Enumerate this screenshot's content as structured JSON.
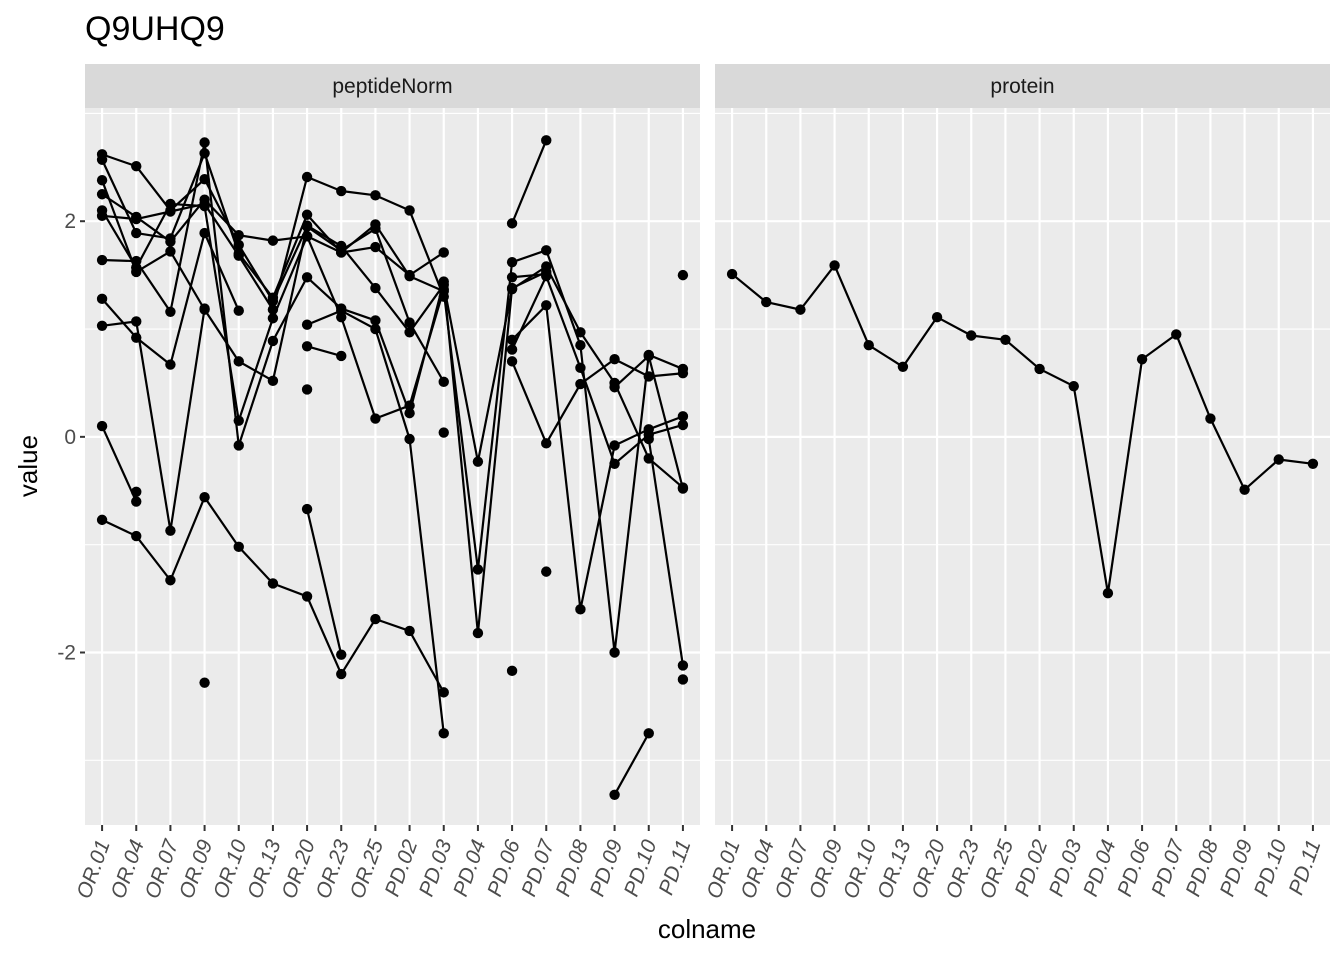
{
  "chart_data": {
    "type": "line",
    "title": "Q9UHQ9",
    "xlabel": "colname",
    "ylabel": "value",
    "ylim": [
      -3.6,
      3.05
    ],
    "y_ticks": [
      -2,
      0,
      2
    ],
    "grid": true,
    "categories": [
      "OR.01",
      "OR.04",
      "OR.07",
      "OR.09",
      "OR.10",
      "OR.13",
      "OR.20",
      "OR.23",
      "OR.25",
      "PD.02",
      "PD.03",
      "PD.04",
      "PD.06",
      "PD.07",
      "PD.08",
      "PD.09",
      "PD.10",
      "PD.11"
    ],
    "panels": [
      {
        "name": "peptideNorm",
        "series": [
          {
            "values": [
              2.62,
              2.51,
              2.1,
              2.39,
              1.78,
              1.26,
              1.95,
              1.73,
              1.93,
              1.06,
              0.51,
              null,
              0.7,
              -0.06,
              0.49,
              0.72,
              0.56,
              0.59
            ]
          },
          {
            "values": [
              2.57,
              1.89,
              1.84,
              2.63,
              1.7,
              1.29,
              2.06,
              1.71,
              1.97,
              1.49,
              1.35,
              -1.23,
              1.62,
              1.73,
              0.85,
              -2.0,
              0.76,
              0.63
            ]
          },
          {
            "values": [
              2.38,
              1.53,
              1.72,
              1.18,
              0.7,
              0.52,
              1.96,
              1.77,
              1.38,
              0.97,
              1.41,
              -0.23,
              1.37,
              1.58,
              0.97,
              0.5,
              -0.2,
              -0.47
            ]
          },
          {
            "values": [
              2.25,
              2.04,
              1.81,
              2.2,
              1.87,
              1.82,
              1.86,
              1.11,
              0.17,
              0.29,
              1.37,
              null,
              0.9,
              1.22,
              -1.6,
              -0.08,
              0.07,
              0.19
            ]
          },
          {
            "values": [
              2.1,
              1.57,
              2.16,
              2.14,
              0.15,
              1.1,
              1.86,
              1.71,
              1.76,
              1.5,
              1.71,
              null,
              0.81,
              1.49,
              0.64,
              -0.25,
              0.02,
              0.11
            ]
          },
          {
            "values": [
              2.05,
              2.02,
              2.09,
              2.16,
              1.68,
              1.18,
              2.41,
              2.28,
              2.24,
              2.1,
              1.3,
              null,
              1.48,
              1.51,
              null,
              0.46,
              0.75,
              -0.48
            ]
          },
          {
            "values": [
              1.64,
              1.63,
              1.16,
              2.73,
              -0.08,
              0.89,
              1.48,
              1.19,
              1.08,
              0.22,
              1.44,
              -1.82,
              1.38,
              1.53,
              null,
              null,
              -0.02,
              -2.12
            ]
          },
          {
            "values": [
              1.28,
              0.92,
              0.67,
              1.89,
              1.17,
              null,
              null,
              null,
              null,
              null,
              null,
              null,
              null,
              null,
              null,
              null,
              null,
              null
            ]
          },
          {
            "values": [
              1.03,
              1.07,
              -0.87,
              1.19,
              null,
              null,
              1.04,
              1.17,
              1.0,
              -0.02,
              -2.75,
              null,
              null,
              null,
              null,
              null,
              null,
              1.5
            ]
          },
          {
            "values": [
              0.1,
              -0.6,
              null,
              null,
              null,
              null,
              0.84,
              0.75,
              null,
              null,
              null,
              null,
              null,
              null,
              null,
              null,
              null,
              null
            ]
          },
          {
            "values": [
              -0.77,
              -0.92,
              -1.33,
              -0.56,
              -1.02,
              -1.36,
              -1.48,
              -2.2,
              -1.69,
              -1.8,
              -2.37,
              null,
              null,
              null,
              null,
              null,
              null,
              null
            ]
          },
          {
            "values": [
              null,
              -0.51,
              null,
              null,
              null,
              null,
              0.44,
              null,
              null,
              null,
              null,
              null,
              null,
              null,
              null,
              null,
              null,
              null
            ]
          },
          {
            "values": [
              null,
              null,
              null,
              null,
              null,
              null,
              -0.67,
              -2.02,
              null,
              null,
              null,
              null,
              null,
              null,
              null,
              null,
              null,
              null
            ]
          },
          {
            "values": [
              null,
              null,
              null,
              -2.28,
              null,
              null,
              null,
              null,
              null,
              null,
              null,
              null,
              null,
              null,
              null,
              null,
              null,
              null
            ]
          },
          {
            "values": [
              null,
              null,
              null,
              null,
              null,
              null,
              null,
              null,
              null,
              null,
              0.04,
              null,
              null,
              null,
              null,
              null,
              null,
              null
            ]
          },
          {
            "values": [
              null,
              null,
              null,
              null,
              null,
              null,
              null,
              null,
              null,
              null,
              null,
              null,
              1.98,
              2.75,
              null,
              null,
              null,
              null
            ]
          },
          {
            "values": [
              null,
              null,
              null,
              null,
              null,
              null,
              null,
              null,
              null,
              null,
              null,
              null,
              -2.17,
              null,
              null,
              null,
              null,
              null
            ]
          },
          {
            "values": [
              null,
              null,
              null,
              null,
              null,
              null,
              null,
              null,
              null,
              null,
              null,
              null,
              null,
              -1.25,
              null,
              null,
              null,
              null
            ]
          },
          {
            "values": [
              null,
              null,
              null,
              null,
              null,
              null,
              null,
              null,
              null,
              null,
              null,
              null,
              null,
              null,
              null,
              -3.32,
              -2.75,
              null
            ]
          },
          {
            "values": [
              null,
              null,
              null,
              null,
              null,
              null,
              null,
              null,
              null,
              null,
              null,
              null,
              null,
              null,
              null,
              null,
              null,
              -2.25
            ]
          }
        ]
      },
      {
        "name": "protein",
        "series": [
          {
            "values": [
              1.51,
              1.25,
              1.18,
              1.59,
              0.85,
              0.65,
              1.11,
              0.94,
              0.9,
              0.63,
              0.47,
              -1.45,
              0.72,
              0.95,
              0.17,
              -0.49,
              -0.21,
              -0.25
            ]
          }
        ]
      }
    ],
    "colors": {
      "panel_bg": "#ebebeb",
      "strip_bg": "#d9d9d9",
      "grid": "#ffffff",
      "point": "#000000",
      "line": "#000000",
      "tick": "#333333",
      "tick_text": "#4d4d4d"
    }
  }
}
